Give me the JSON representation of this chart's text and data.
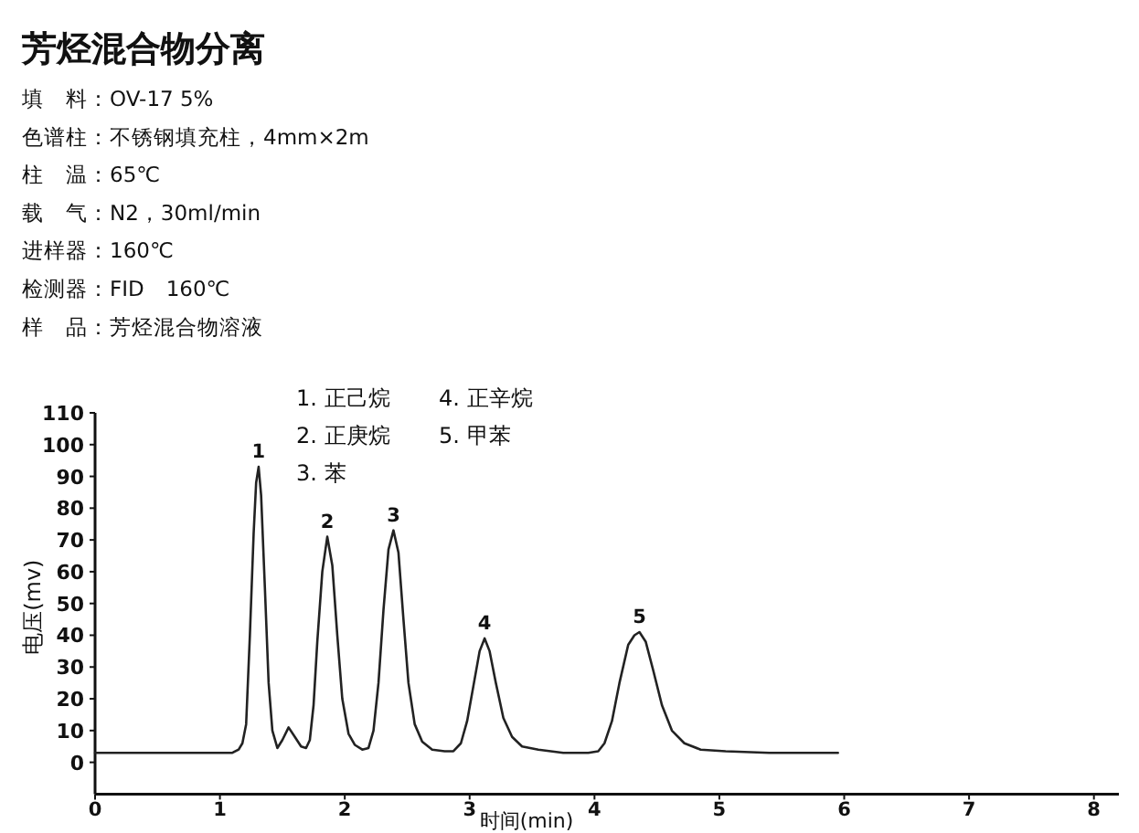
{
  "chart_data": {
    "type": "line",
    "title": "芳烃混合物分离",
    "xlabel": "时间(min)",
    "ylabel": "电压(mv)",
    "annotations": [
      "填　料：OV-17 5%",
      "色谱柱：不锈钢填充柱，4mm×2m",
      "柱　温：65℃",
      "载　气：N2，30ml/min",
      "进样器：160℃",
      "检测器：FID　160℃",
      "样　品：芳烃混合物溶液",
      "1. 正己烷",
      "2. 正庚烷",
      "3. 苯",
      "4. 正辛烷",
      "5. 甲苯",
      {
        "text": "1",
        "x": 1.31,
        "y": 93
      },
      {
        "text": "2",
        "x": 1.86,
        "y": 71
      },
      {
        "text": "3",
        "x": 2.39,
        "y": 73
      },
      {
        "text": "4",
        "x": 3.12,
        "y": 39
      },
      {
        "text": "5",
        "x": 4.36,
        "y": 41
      }
    ],
    "x": [
      0,
      1.0,
      1.1,
      1.15,
      1.18,
      1.21,
      1.24,
      1.27,
      1.29,
      1.31,
      1.33,
      1.36,
      1.39,
      1.42,
      1.46,
      1.5,
      1.55,
      1.6,
      1.65,
      1.69,
      1.72,
      1.75,
      1.78,
      1.82,
      1.86,
      1.9,
      1.94,
      1.98,
      2.03,
      2.08,
      2.14,
      2.19,
      2.23,
      2.27,
      2.31,
      2.35,
      2.39,
      2.43,
      2.47,
      2.51,
      2.56,
      2.62,
      2.7,
      2.8,
      2.87,
      2.93,
      2.98,
      3.03,
      3.08,
      3.12,
      3.16,
      3.21,
      3.27,
      3.34,
      3.42,
      3.55,
      3.75,
      3.95,
      4.03,
      4.08,
      4.14,
      4.2,
      4.27,
      4.32,
      4.36,
      4.41,
      4.47,
      4.54,
      4.62,
      4.72,
      4.85,
      5.05,
      5.4,
      5.95
    ],
    "series": [
      {
        "color": "#222222",
        "values": [
          3,
          3,
          3,
          4,
          6,
          12,
          40,
          72,
          88,
          93,
          84,
          55,
          25,
          10,
          4.5,
          7,
          11,
          8,
          5,
          4.5,
          7,
          18,
          38,
          60,
          71,
          62,
          40,
          20,
          9,
          5.5,
          4,
          4.5,
          10,
          25,
          48,
          67,
          73,
          66,
          45,
          25,
          12,
          6.5,
          4,
          3.5,
          3.5,
          6,
          13,
          24,
          35,
          39,
          35,
          25,
          14,
          8,
          5,
          4,
          3,
          3,
          3.5,
          6,
          13,
          25,
          37,
          40,
          41,
          38,
          29,
          18,
          10,
          6,
          4,
          3.5,
          3,
          3
        ]
      }
    ],
    "xlim": [
      0,
      8.2
    ],
    "ylim": [
      -10,
      110
    ],
    "xticks": [
      0,
      1,
      2,
      3,
      4,
      5,
      6,
      7,
      8
    ],
    "yticks": [
      0,
      10,
      20,
      30,
      40,
      50,
      60,
      70,
      80,
      90,
      100,
      110
    ],
    "marker": "none",
    "line_style": "solid"
  }
}
